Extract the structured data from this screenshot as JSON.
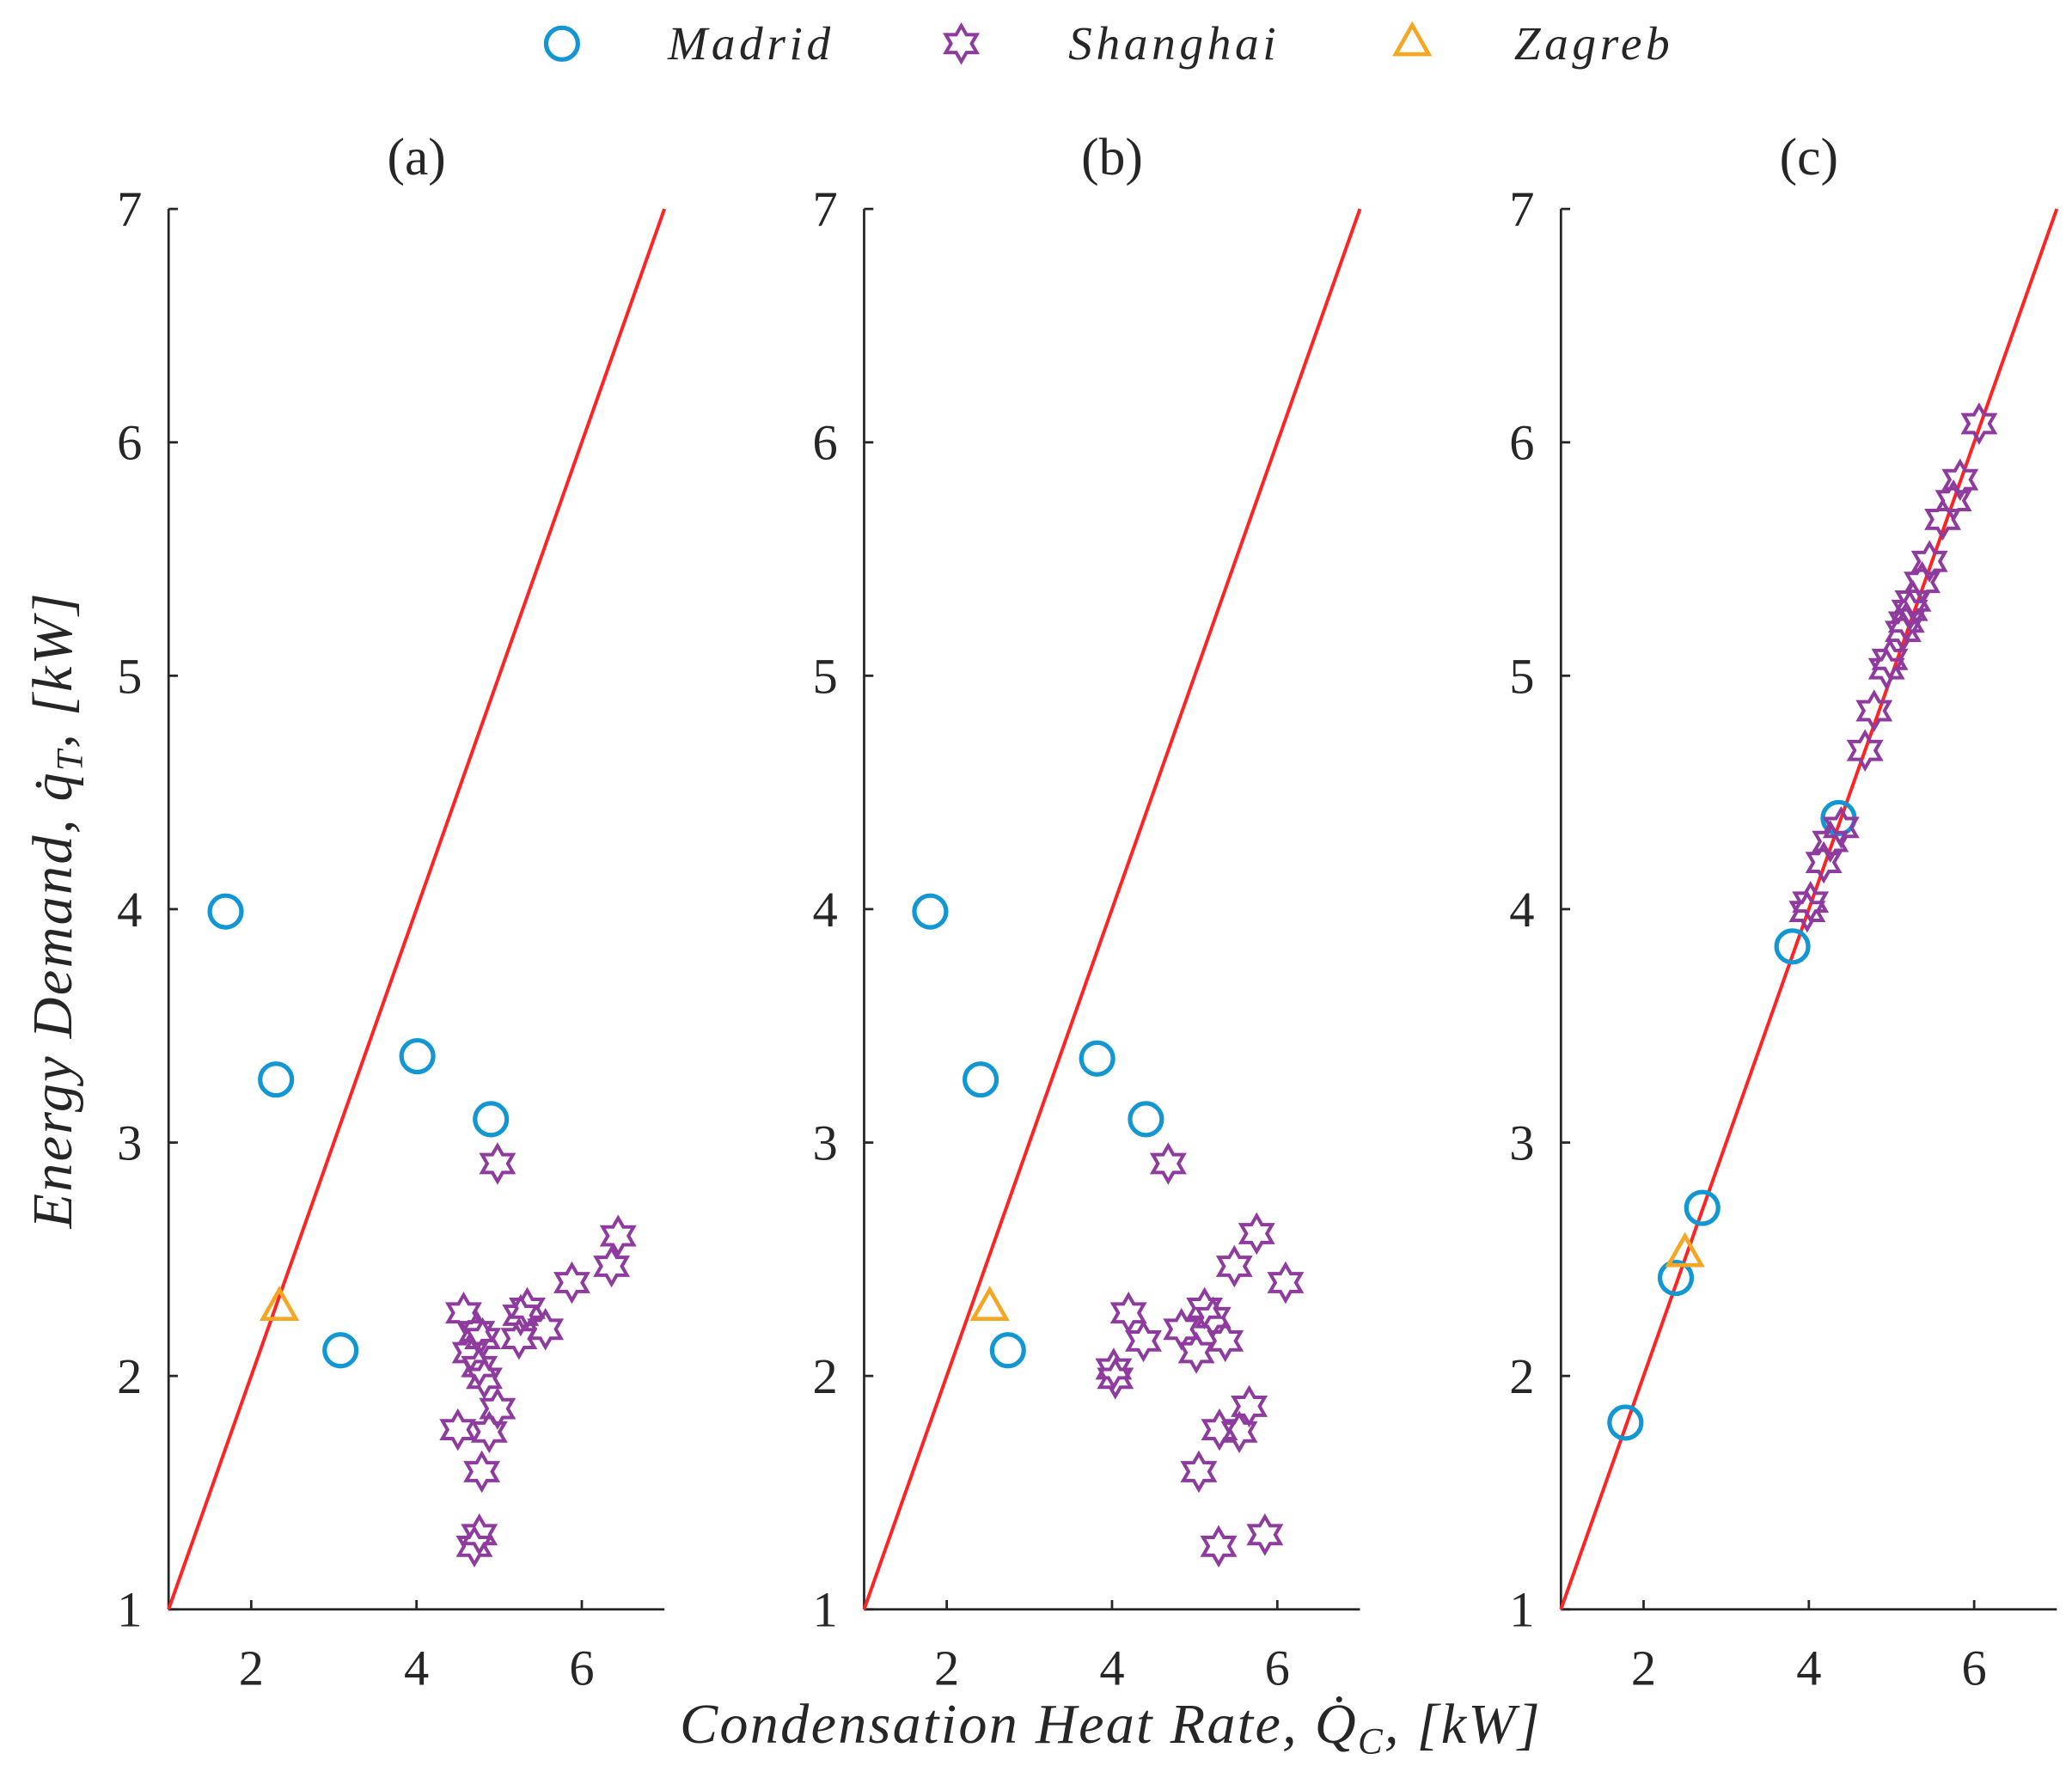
{
  "chart_data": {
    "type": "scatter",
    "legend": [
      {
        "name": "Madrid",
        "marker": "circle",
        "color": "#1297D3"
      },
      {
        "name": "Shanghai",
        "marker": "hexagram",
        "color": "#8E3A9E"
      },
      {
        "name": "Zagreb",
        "marker": "triangle",
        "color": "#F5A623"
      }
    ],
    "xlabel": {
      "text": "Condensation Heat Rate, ",
      "symbol": "Q̇",
      "subscript": "C",
      "unit": ", [kW]"
    },
    "ylabel": {
      "text": "Energy Demand, ",
      "symbol": "q̇",
      "subscript": "T",
      "unit": ", [kW]"
    },
    "reference_line": {
      "x": [
        1,
        7
      ],
      "y": [
        1,
        7
      ],
      "color": "#FF2424"
    },
    "panels": [
      {
        "title": "(a)",
        "xlim": [
          1,
          7
        ],
        "ylim": [
          1,
          7
        ],
        "xticks": [
          2,
          4,
          6
        ],
        "yticks": [
          1,
          2,
          3,
          4,
          5,
          6,
          7
        ],
        "series": [
          {
            "legend": 0,
            "x": [
              1.69,
              2.3,
              4.01,
              4.9,
              3.08
            ],
            "y": [
              3.99,
              3.27,
              3.37,
              3.1,
              2.11
            ]
          },
          {
            "legend": 1,
            "x": [
              4.98,
              6.44,
              6.36,
              5.88,
              5.34,
              4.57,
              5.26,
              5.56,
              4.73,
              5.24,
              4.8,
              4.65,
              4.76,
              4.82,
              4.98,
              4.5,
              4.88,
              4.79,
              4.76,
              4.7
            ],
            "y": [
              2.91,
              2.6,
              2.47,
              2.4,
              2.29,
              2.27,
              2.26,
              2.2,
              2.19,
              2.16,
              2.16,
              2.1,
              2.04,
              1.99,
              1.86,
              1.77,
              1.76,
              1.59,
              1.32,
              1.27
            ]
          },
          {
            "legend": 2,
            "x": [
              2.34
            ],
            "y": [
              2.29
            ]
          }
        ]
      },
      {
        "title": "(b)",
        "xlim": [
          1,
          7
        ],
        "ylim": [
          1,
          7
        ],
        "xticks": [
          2,
          4,
          6
        ],
        "yticks": [
          1,
          2,
          3,
          4,
          5,
          6,
          7
        ],
        "series": [
          {
            "legend": 0,
            "x": [
              1.8,
              2.41,
              3.82,
              4.41,
              2.74
            ],
            "y": [
              3.99,
              3.27,
              3.36,
              3.1,
              2.11
            ]
          },
          {
            "legend": 1,
            "x": [
              4.68,
              5.75,
              5.48,
              6.1,
              5.12,
              4.2,
              5.22,
              4.84,
              4.38,
              5.37,
              5.02,
              4.02,
              4.04,
              5.66,
              5.3,
              5.54,
              5.05,
              5.85,
              5.29
            ],
            "y": [
              2.91,
              2.61,
              2.47,
              2.4,
              2.29,
              2.27,
              2.25,
              2.2,
              2.15,
              2.15,
              2.1,
              2.03,
              1.99,
              1.87,
              1.77,
              1.76,
              1.59,
              1.32,
              1.27
            ]
          },
          {
            "legend": 2,
            "x": [
              2.52
            ],
            "y": [
              2.29
            ]
          }
        ]
      },
      {
        "title": "(c)",
        "xlim": [
          1,
          7
        ],
        "ylim": [
          1,
          7
        ],
        "xticks": [
          2,
          4,
          6
        ],
        "yticks": [
          1,
          2,
          3,
          4,
          5,
          6,
          7
        ],
        "series": [
          {
            "legend": 0,
            "x": [
              1.78,
              2.39,
              2.71,
              3.8,
              4.36
            ],
            "y": [
              1.8,
              2.42,
              2.72,
              3.84,
              4.39
            ]
          },
          {
            "legend": 1,
            "x": [
              6.06,
              5.83,
              5.75,
              5.62,
              5.46,
              5.37,
              5.26,
              5.22,
              5.18,
              5.14,
              4.98,
              4.94,
              4.79,
              4.68,
              4.39,
              4.26,
              4.18,
              4.02,
              3.98
            ],
            "y": [
              6.08,
              5.84,
              5.75,
              5.67,
              5.49,
              5.4,
              5.32,
              5.28,
              5.23,
              5.19,
              5.07,
              5.03,
              4.85,
              4.68,
              4.35,
              4.29,
              4.2,
              4.03,
              3.99
            ]
          },
          {
            "legend": 2,
            "x": [
              2.5
            ],
            "y": [
              2.52
            ]
          }
        ]
      }
    ]
  }
}
